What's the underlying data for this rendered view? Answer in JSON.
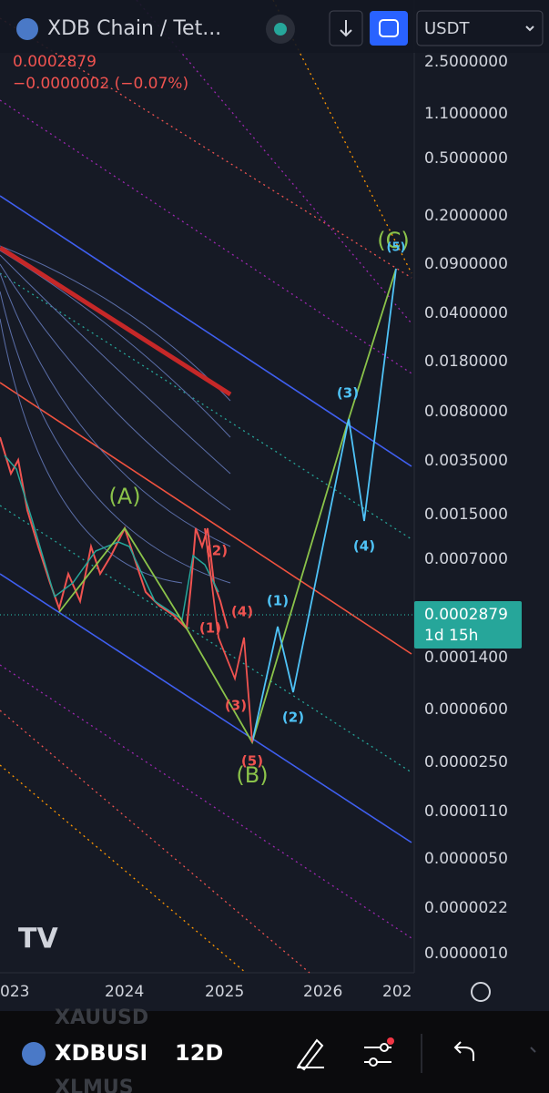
{
  "header": {
    "title": "XDB Chain / Tet...",
    "currency": "USDT"
  },
  "price": {
    "last": "0.0002879",
    "change": "−0.0000002 (−0.07%)"
  },
  "axis": {
    "labels": [
      "2.5000000",
      "1.1000000",
      "0.5000000",
      "0.2000000",
      "0.0900000",
      "0.0400000",
      "0.0180000",
      "0.0080000",
      "0.0035000",
      "0.0015000",
      "0.0007000",
      "0.0001400",
      "0.0000600",
      "0.0000250",
      "0.0000110",
      "0.0000050",
      "0.0000022",
      "0.0000010"
    ]
  },
  "price_tag": {
    "price": "0.0002879",
    "countdown": "1d 15h"
  },
  "x_axis": [
    "023",
    "2024",
    "2025",
    "2026",
    "202"
  ],
  "waves": [
    "(A)",
    "(B)",
    "(C)",
    "(1)",
    "(2)",
    "(3)",
    "(4)",
    "(5)",
    "(2)",
    "(4)",
    "(1)",
    "(3)",
    "(5)"
  ],
  "toolbar": {
    "symbol": "XDBUSD",
    "interval": "12D"
  },
  "watchlist": [
    "XAUUSD",
    "XLMUS"
  ]
}
